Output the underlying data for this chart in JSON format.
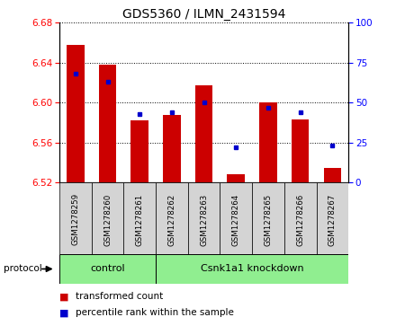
{
  "title": "GDS5360 / ILMN_2431594",
  "samples": [
    "GSM1278259",
    "GSM1278260",
    "GSM1278261",
    "GSM1278262",
    "GSM1278263",
    "GSM1278264",
    "GSM1278265",
    "GSM1278266",
    "GSM1278267"
  ],
  "red_values": [
    6.658,
    6.638,
    6.582,
    6.588,
    6.617,
    6.528,
    6.6,
    6.583,
    6.535
  ],
  "blue_values": [
    68,
    63,
    43,
    44,
    50,
    22,
    47,
    44,
    23
  ],
  "ylim_left": [
    6.52,
    6.68
  ],
  "ylim_right": [
    0,
    100
  ],
  "yticks_left": [
    6.52,
    6.56,
    6.6,
    6.64,
    6.68
  ],
  "yticks_right": [
    0,
    25,
    50,
    75,
    100
  ],
  "control_count": 3,
  "knockdown_count": 6,
  "protocol_label": "protocol",
  "control_label": "control",
  "knockdown_label": "Csnk1a1 knockdown",
  "bar_color": "#cc0000",
  "dot_color": "#0000cc",
  "xticklabel_bg": "#d8d8d8",
  "protocol_bg": "#90ee90",
  "legend_entries": [
    "transformed count",
    "percentile rank within the sample"
  ],
  "title_fontsize": 10
}
